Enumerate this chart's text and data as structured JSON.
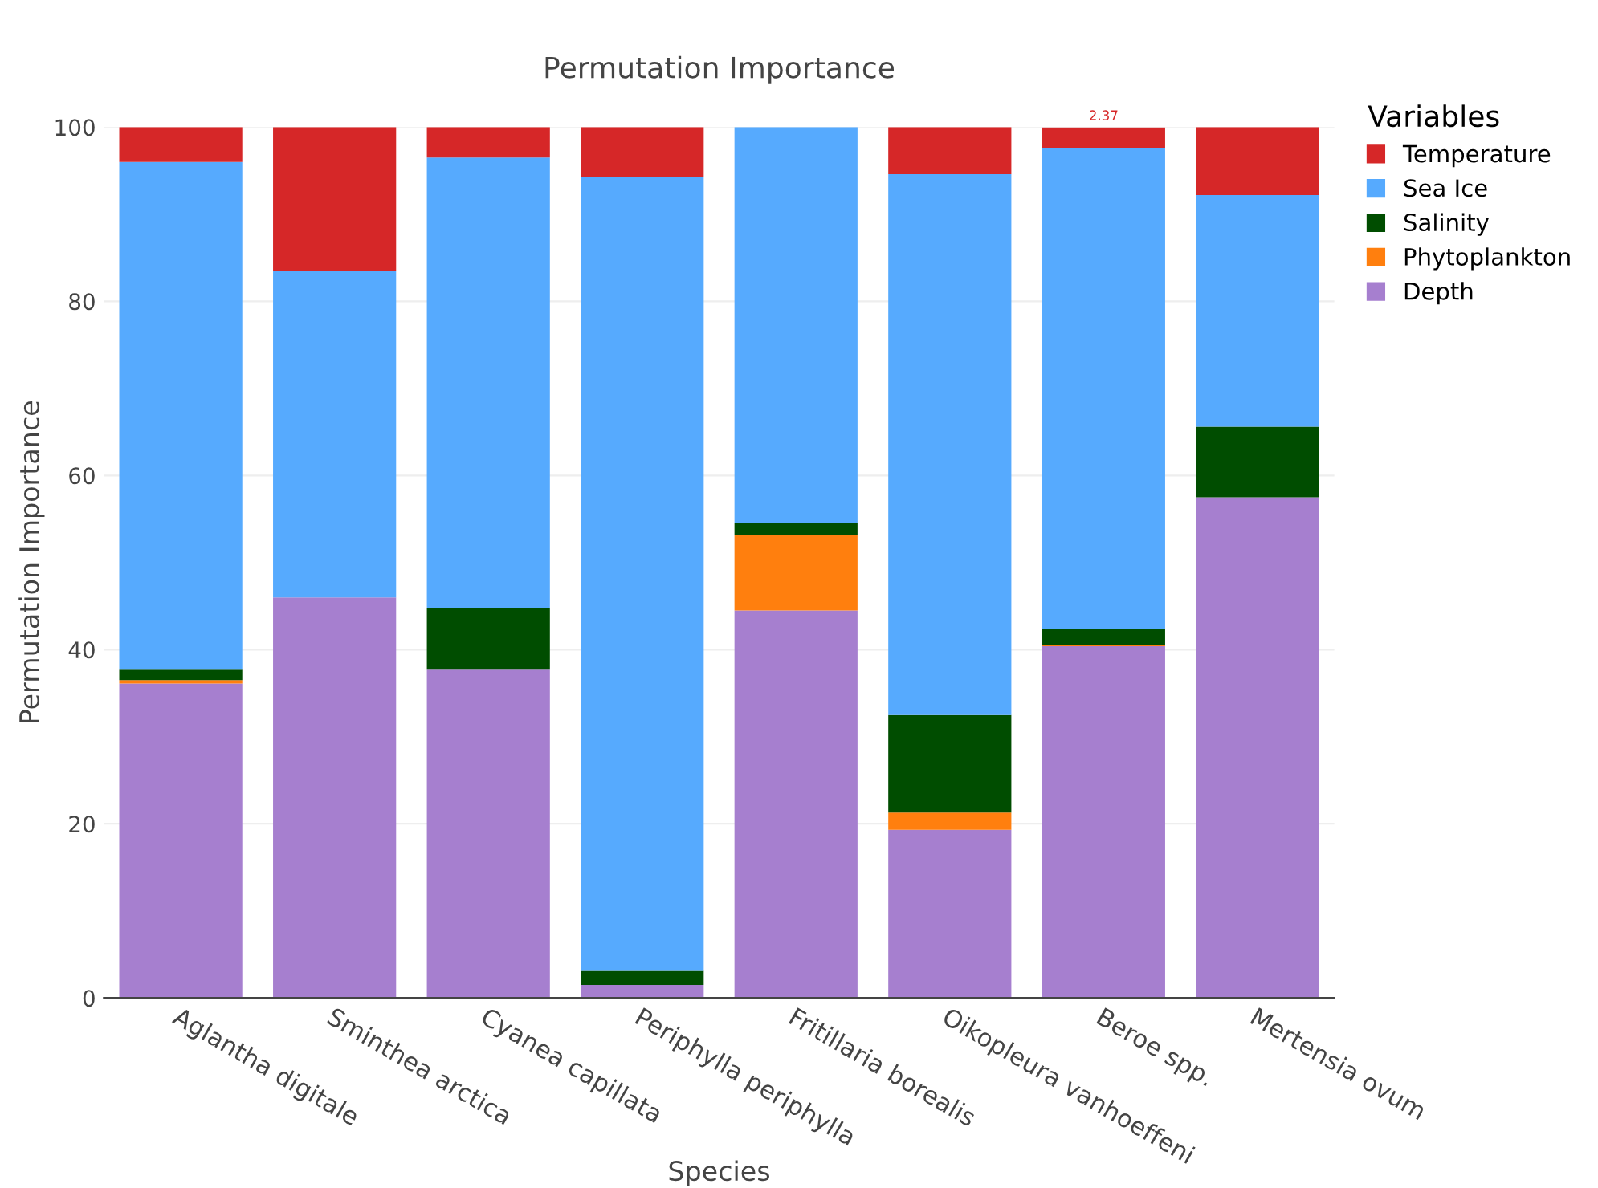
{
  "chart_data": {
    "type": "bar",
    "stacked": true,
    "title": "Permutation Importance",
    "xlabel": "Species",
    "ylabel": "Permutation Importance",
    "legend_title": "Variables",
    "legend": "top right",
    "grid": "y",
    "categories": [
      "Aglantha digitale",
      "Sminthea arctica",
      "Cyanea capillata",
      "Periphylla periphylla",
      "Fritillaria borealis",
      "Oikopleura vanhoeffeni",
      "Beroe spp.",
      "Mertensia ovum"
    ],
    "ylim": [
      0,
      100
    ],
    "yticks": [
      0,
      20,
      40,
      60,
      80,
      100
    ],
    "series": [
      {
        "name": "Depth",
        "color": "#a67fcf",
        "values": [
          36.1,
          46.0,
          37.7,
          1.5,
          44.5,
          19.3,
          40.4,
          57.5
        ]
      },
      {
        "name": "Phytoplankton",
        "color": "#ff7f0e",
        "values": [
          0.4,
          0,
          0,
          0,
          8.7,
          2.0,
          0.1,
          0
        ]
      },
      {
        "name": "Salinity",
        "color": "#004d00",
        "values": [
          1.2,
          0,
          7.1,
          1.6,
          1.3,
          11.2,
          1.9,
          8.1
        ]
      },
      {
        "name": "Sea Ice",
        "color": "#56aafe",
        "values": [
          58.3,
          37.5,
          51.7,
          91.2,
          45.5,
          62.1,
          55.2,
          26.6
        ]
      },
      {
        "name": "Temperature",
        "color": "#d62728",
        "values": [
          4.0,
          16.5,
          3.5,
          5.7,
          0,
          5.4,
          2.37,
          7.8
        ],
        "value_labels": [
          null,
          null,
          null,
          null,
          null,
          null,
          "2.37",
          null
        ]
      }
    ]
  }
}
